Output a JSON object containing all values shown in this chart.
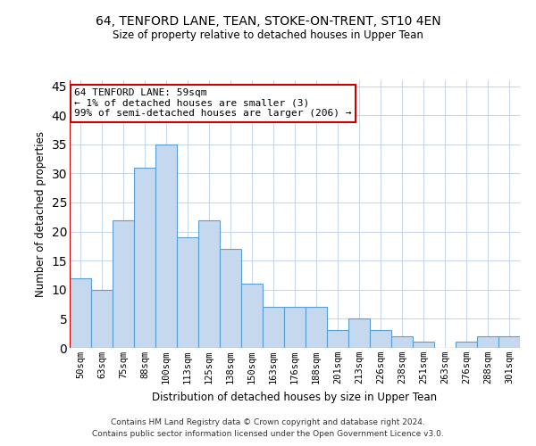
{
  "title1": "64, TENFORD LANE, TEAN, STOKE-ON-TRENT, ST10 4EN",
  "title2": "Size of property relative to detached houses in Upper Tean",
  "xlabel": "Distribution of detached houses by size in Upper Tean",
  "ylabel": "Number of detached properties",
  "categories": [
    "50sqm",
    "63sqm",
    "75sqm",
    "88sqm",
    "100sqm",
    "113sqm",
    "125sqm",
    "138sqm",
    "150sqm",
    "163sqm",
    "176sqm",
    "188sqm",
    "201sqm",
    "213sqm",
    "226sqm",
    "238sqm",
    "251sqm",
    "263sqm",
    "276sqm",
    "288sqm",
    "301sqm"
  ],
  "values": [
    12,
    10,
    22,
    31,
    35,
    19,
    22,
    17,
    11,
    7,
    7,
    7,
    3,
    5,
    3,
    2,
    1,
    0,
    1,
    2,
    2
  ],
  "bar_color": "#c5d8ed",
  "bar_edge_color": "#5a9fd4",
  "ylim": [
    0,
    46
  ],
  "yticks": [
    0,
    5,
    10,
    15,
    20,
    25,
    30,
    35,
    40,
    45
  ],
  "annotation_text": "64 TENFORD LANE: 59sqm\n← 1% of detached houses are smaller (3)\n99% of semi-detached houses are larger (206) →",
  "annotation_box_color": "#ffffff",
  "annotation_box_edge": "#cc0000",
  "vline_color": "#cc0000",
  "grid_color": "#c8d8e8",
  "footer1": "Contains HM Land Registry data © Crown copyright and database right 2024.",
  "footer2": "Contains public sector information licensed under the Open Government Licence v3.0."
}
